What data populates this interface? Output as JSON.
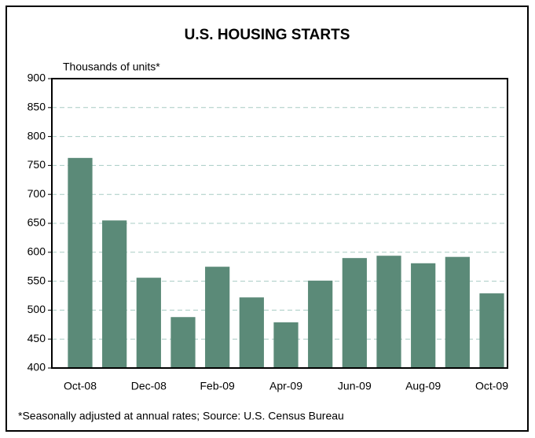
{
  "chart_data": {
    "type": "bar",
    "title": "U.S. HOUSING STARTS",
    "y_label": "Thousands of units*",
    "footnote": "*Seasonally adjusted at annual rates; Source: U.S. Census Bureau",
    "categories": [
      "Oct-08",
      null,
      "Dec-08",
      null,
      "Feb-09",
      null,
      "Apr-09",
      null,
      "Jun-09",
      null,
      "Aug-09",
      null,
      "Oct-09"
    ],
    "values": [
      763,
      655,
      556,
      488,
      575,
      522,
      479,
      551,
      590,
      594,
      581,
      592,
      529
    ],
    "color": "#5b8a78",
    "ylim": [
      400,
      900
    ],
    "yticks": [
      400,
      450,
      500,
      550,
      600,
      650,
      700,
      750,
      800,
      850,
      900
    ],
    "grid": true
  }
}
